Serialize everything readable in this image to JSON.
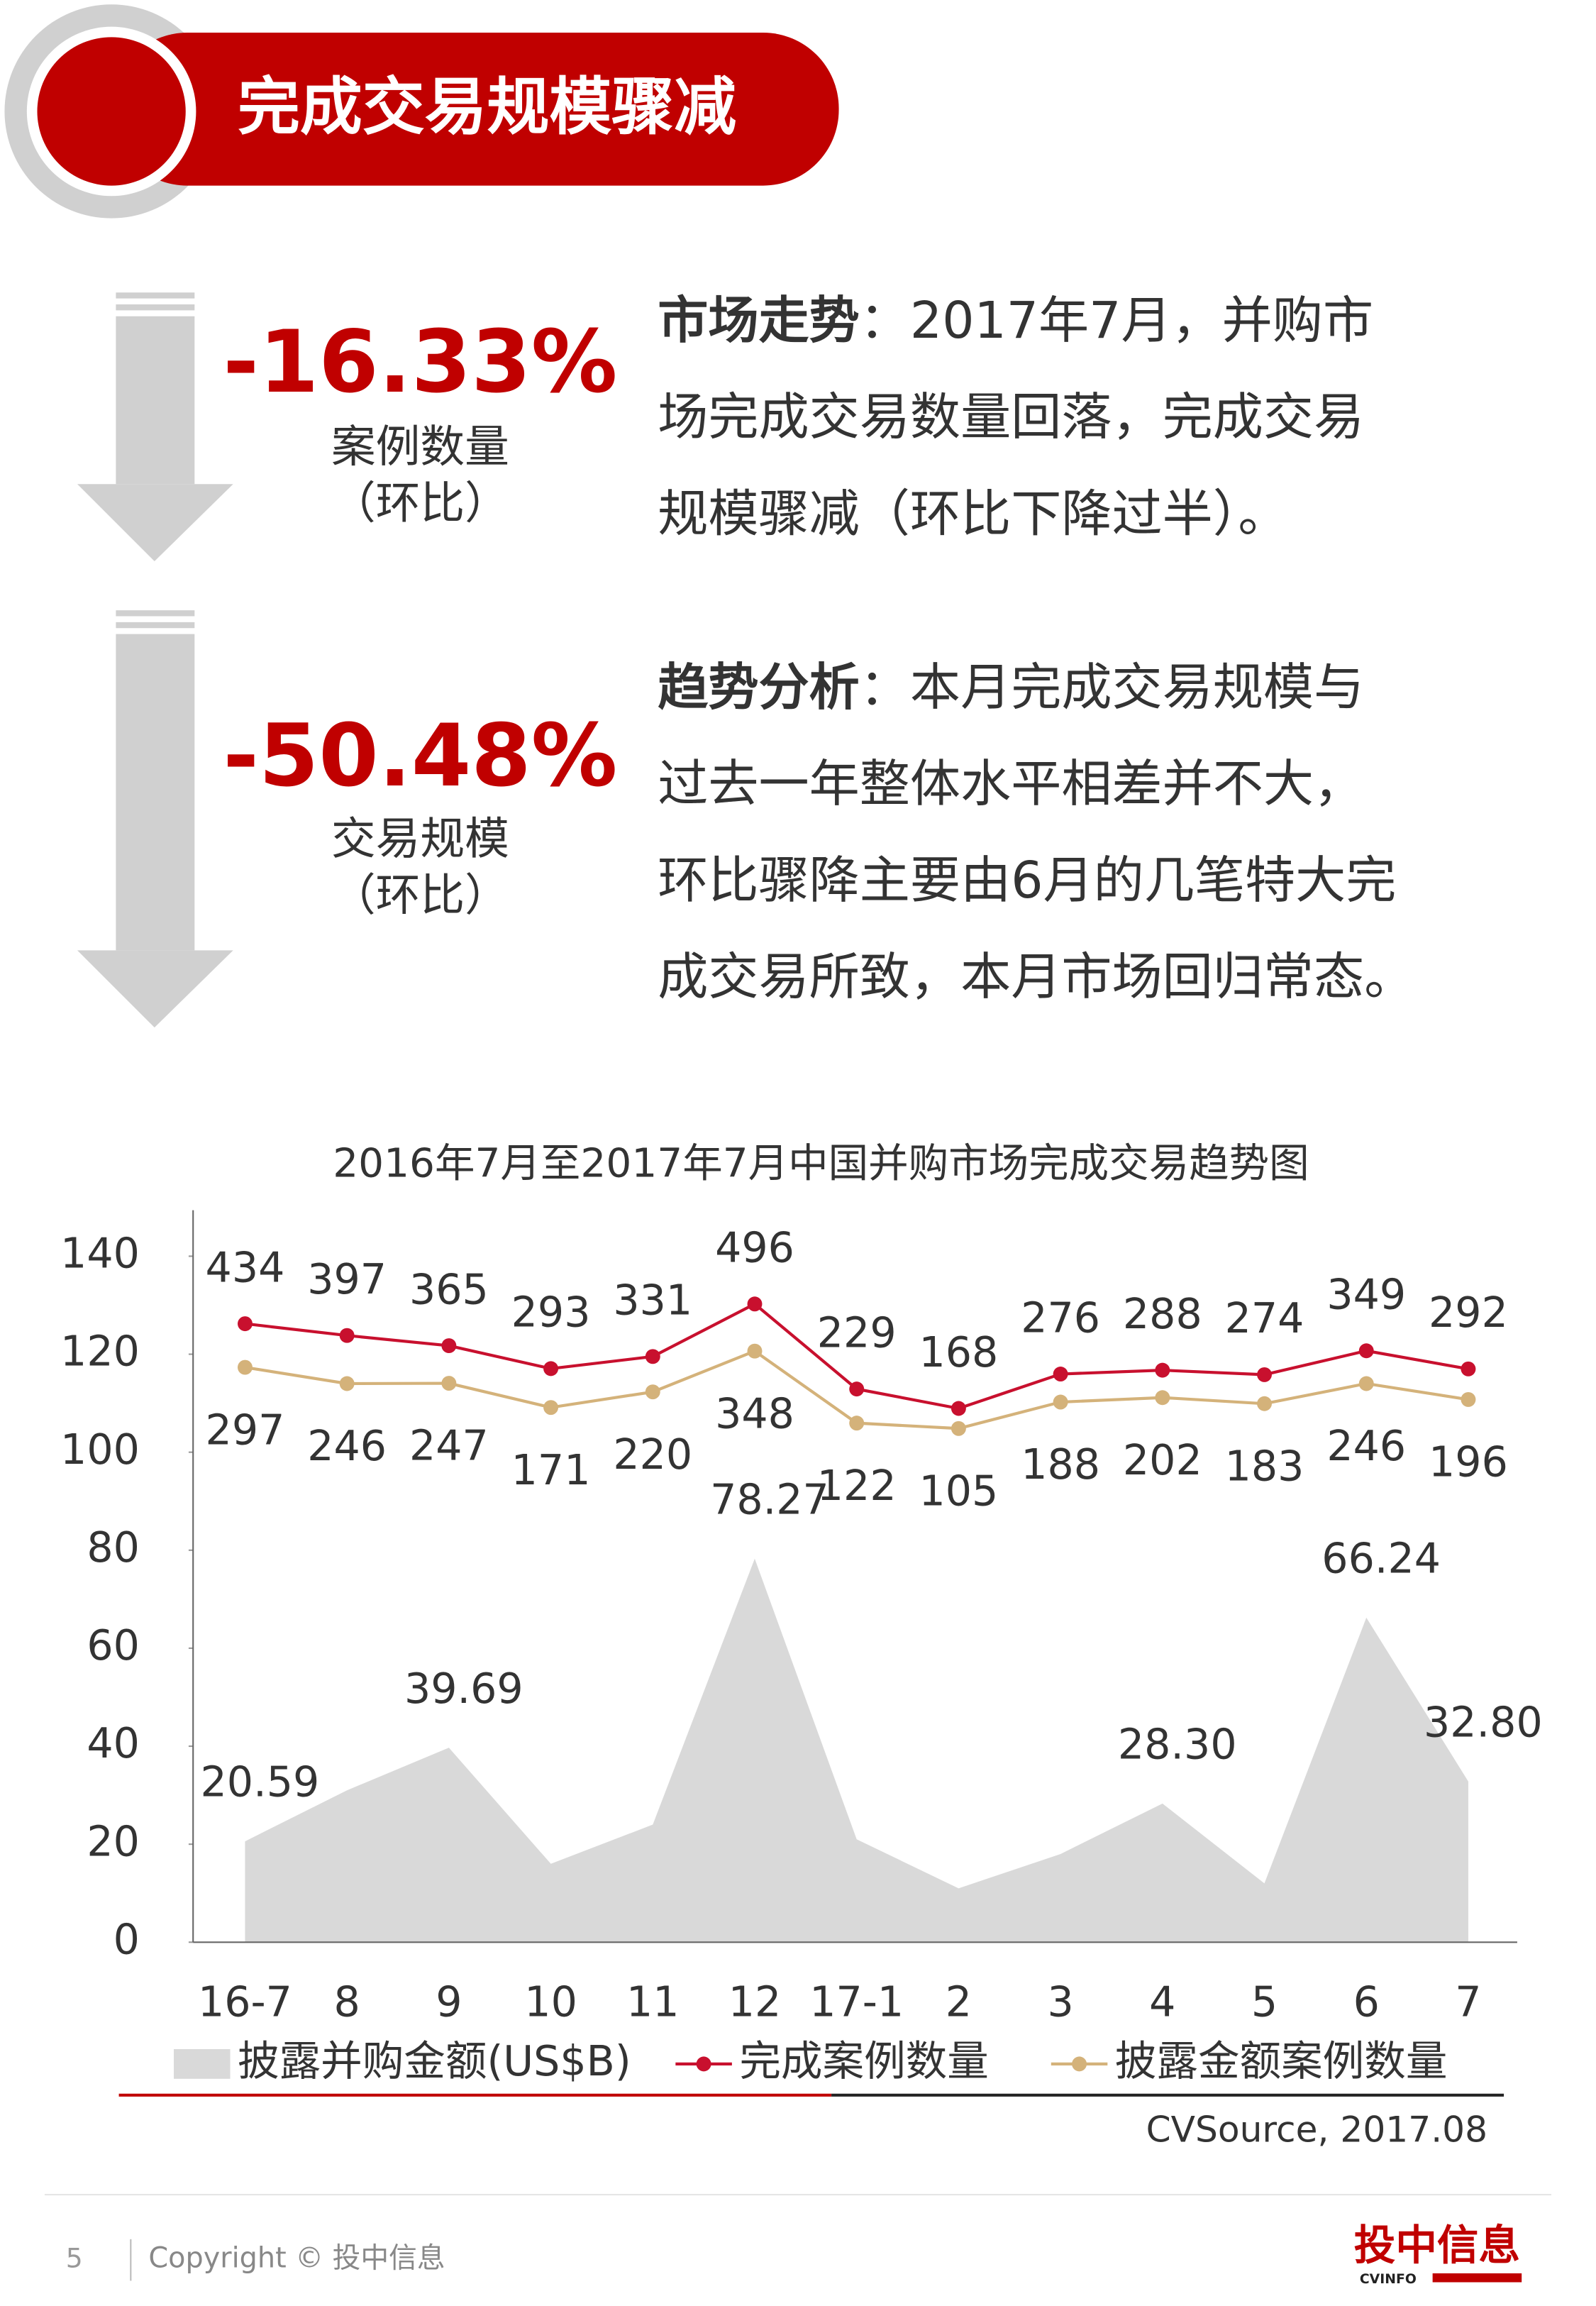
{
  "header": {
    "title": "完成交易规模骤减"
  },
  "stats": [
    {
      "value": "-16.33%",
      "label": "案例数量",
      "note": "（环比）"
    },
    {
      "value": "-50.48%",
      "label": "交易规模",
      "note": "（环比）"
    }
  ],
  "paragraphs": [
    {
      "heading": "市场走势",
      "lines": [
        "：2017年7月，并购市",
        "场完成交易数量回落，完成交易",
        "规模骤减（环比下降过半）。"
      ]
    },
    {
      "heading": "趋势分析",
      "lines": [
        "：本月完成交易规模与",
        "过去一年整体水平相差并不大，",
        "环比骤降主要由6月的几笔特大完",
        "成交易所致，本月市场回归常态。"
      ]
    }
  ],
  "chart_data": {
    "type": "area-line",
    "title": "2016年7月至2017年7月中国并购市场完成交易趋势图",
    "categories": [
      "16-7",
      "8",
      "9",
      "10",
      "11",
      "12",
      "17-1",
      "2",
      "3",
      "4",
      "5",
      "6",
      "7"
    ],
    "series": [
      {
        "name": "披露并购金额(US$B)",
        "color": "#d9d9d9",
        "type": "area",
        "values": [
          20.59,
          31,
          39.69,
          16,
          24,
          78.27,
          21,
          11,
          18,
          28.3,
          12,
          66.24,
          32.8
        ],
        "value_labels": [
          "20.59",
          null,
          "39.69",
          null,
          null,
          "78.27",
          null,
          null,
          null,
          "28.30",
          null,
          "66.24",
          "32.80"
        ]
      },
      {
        "name": "完成案例数量",
        "color": "#c8102e",
        "type": "line",
        "axis": "y2",
        "values": [
          434,
          397,
          365,
          293,
          331,
          496,
          229,
          168,
          276,
          288,
          274,
          349,
          292
        ]
      },
      {
        "name": "披露金额案例数量",
        "color": "#d4b27a",
        "type": "line",
        "axis": "y2",
        "values": [
          297,
          246,
          247,
          171,
          220,
          348,
          122,
          105,
          188,
          202,
          183,
          246,
          196
        ]
      }
    ],
    "ylim": [
      0,
      140
    ],
    "yticks": [
      0,
      20,
      40,
      60,
      80,
      100,
      120,
      140
    ],
    "y2lim": [
      -1508,
      646
    ],
    "source": "CVSource, 2017.08"
  },
  "footer": {
    "page": "5",
    "copyright": "Copyright © 投中信息",
    "logo": "投中信息",
    "logo_sub": "CVINFO"
  }
}
